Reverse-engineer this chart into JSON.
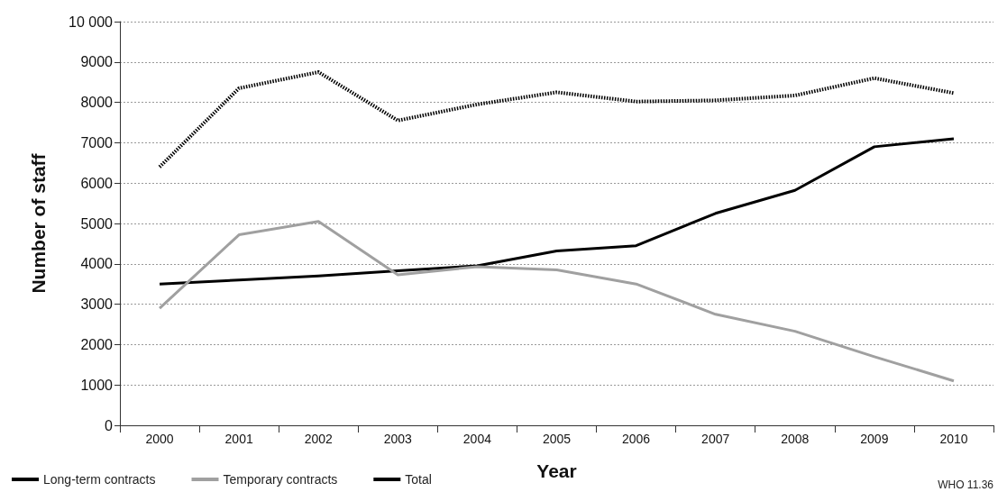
{
  "chart_data": {
    "type": "line",
    "xlabel": "Year",
    "ylabel": "Number of staff",
    "categories": [
      "2000",
      "2001",
      "2002",
      "2003",
      "2004",
      "2005",
      "2006",
      "2007",
      "2008",
      "2009",
      "2010"
    ],
    "series": [
      {
        "name": "Long-term contracts",
        "color": "#000000",
        "line_style": "solid",
        "values": [
          3500,
          3600,
          3700,
          3830,
          3950,
          4320,
          4450,
          5250,
          5820,
          6900,
          7100
        ]
      },
      {
        "name": "Temporary contracts",
        "color": "#a0a0a0",
        "line_style": "solid",
        "values": [
          2900,
          4720,
          5050,
          3730,
          3930,
          3850,
          3500,
          2750,
          2330,
          1700,
          1100
        ]
      },
      {
        "name": "Total",
        "color": "#000000",
        "line_style": "dotted",
        "values": [
          6400,
          8350,
          8750,
          7550,
          7950,
          8250,
          8020,
          8050,
          8170,
          8600,
          8230
        ]
      }
    ],
    "ylim": [
      0,
      10000
    ],
    "yticks": [
      0,
      1000,
      2000,
      3000,
      4000,
      5000,
      6000,
      7000,
      8000,
      9000,
      {
        "value": 10000,
        "label": "10 000"
      }
    ],
    "grid": "y",
    "legend": "bottom left",
    "marker": "none",
    "annotations": [
      "WHO 11.36"
    ]
  }
}
